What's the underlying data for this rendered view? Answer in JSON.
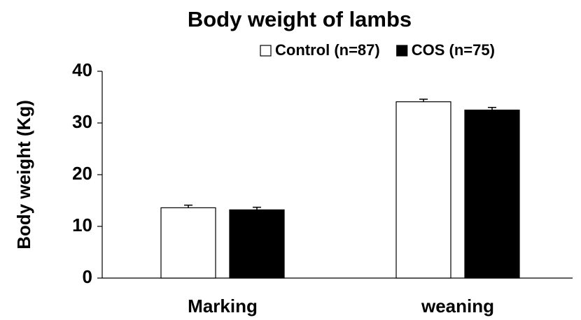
{
  "chart_data": {
    "type": "bar",
    "title": "Body weight of lambs",
    "ylabel": "Body weight (Kg)",
    "categories": [
      "Marking",
      "weaning"
    ],
    "series": [
      {
        "name": "Control (n=87)",
        "color": "#ffffff",
        "values": [
          13.6,
          34.1
        ],
        "errors": [
          0.5,
          0.5
        ]
      },
      {
        "name": "COS (n=75)",
        "color": "#000000",
        "values": [
          13.2,
          32.5
        ],
        "errors": [
          0.5,
          0.5
        ]
      }
    ],
    "ylim": [
      0,
      40
    ],
    "yticks": [
      0,
      10,
      20,
      30,
      40
    ],
    "legend": "top-right"
  }
}
